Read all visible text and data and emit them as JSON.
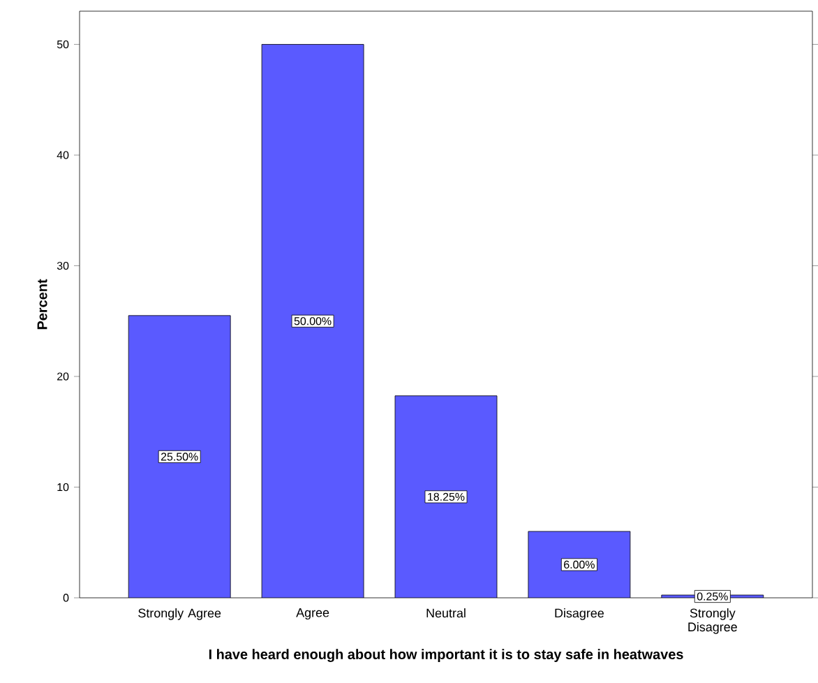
{
  "chart_data": {
    "type": "bar",
    "xlabel": "I have heard enough about how important it is to stay safe in heatwaves",
    "ylabel": "Percent",
    "categories": [
      "Strongly Agree",
      "Agree",
      "Neutral",
      "Disagree",
      "Strongly Disagree"
    ],
    "values": [
      25.5,
      50,
      18.25,
      6,
      0.25
    ],
    "value_labels": [
      "25.50%",
      "50.00%",
      "18.25%",
      "6.00%",
      "0.25%"
    ],
    "color": "#5a5aff",
    "ylim": [
      0,
      53
    ],
    "yticks": [
      0,
      10,
      20,
      30,
      40,
      50
    ]
  }
}
